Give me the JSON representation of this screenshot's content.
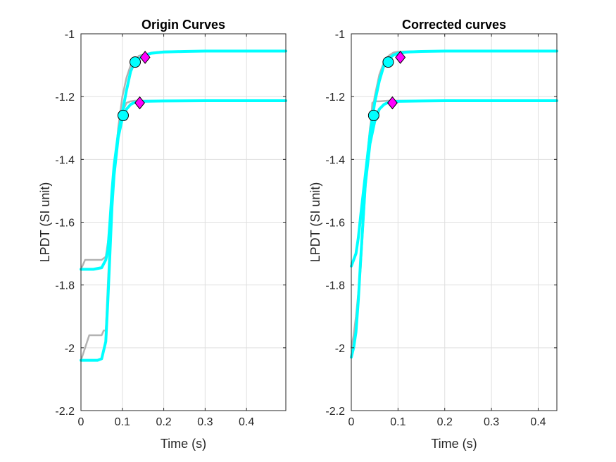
{
  "figure": {
    "background": "#ffffff"
  },
  "chart_data": [
    {
      "type": "line",
      "title": "Origin Curves",
      "xlabel": "Time (s)",
      "ylabel": "LPDT (SI unit)",
      "xlim": [
        0,
        0.495
      ],
      "ylim": [
        -2.2,
        -1.0
      ],
      "xticks": [
        0,
        0.1,
        0.2,
        0.3,
        0.4
      ],
      "xtick_labels": [
        "0",
        "0.1",
        "0.2",
        "0.3",
        "0.4"
      ],
      "yticks": [
        -2.2,
        -2.0,
        -1.8,
        -1.6,
        -1.4,
        -1.2,
        -1.0
      ],
      "ytick_labels": [
        "-2.2",
        "-2",
        "-1.8",
        "-1.6",
        "-1.4",
        "-1.2",
        "-1"
      ],
      "grid": true,
      "series": [
        {
          "role": "raw",
          "color": "#b3b3b3",
          "x": [
            0,
            0.01,
            0.03,
            0.05,
            0.06,
            0.07,
            0.08,
            0.09,
            0.1,
            0.11,
            0.12,
            0.14,
            0.17,
            0.2,
            0.3,
            0.495
          ],
          "y": [
            -1.75,
            -1.72,
            -1.72,
            -1.72,
            -1.71,
            -1.62,
            -1.45,
            -1.3,
            -1.2,
            -1.14,
            -1.1,
            -1.07,
            -1.06,
            -1.056,
            -1.055,
            -1.055
          ]
        },
        {
          "role": "raw",
          "color": "#b3b3b3",
          "x": [
            0,
            0.02,
            0.03,
            0.05,
            0.055,
            0.06,
            0.07,
            0.08,
            0.09,
            0.1,
            0.11,
            0.12,
            0.13,
            0.15,
            0.2,
            0.3,
            0.495
          ],
          "y": [
            -2.04,
            -1.96,
            -1.96,
            -1.96,
            -1.945,
            -1.945,
            -1.65,
            -1.45,
            -1.33,
            -1.25,
            -1.22,
            -1.215,
            -1.213,
            -1.213,
            -1.213,
            -1.213,
            -1.213
          ]
        },
        {
          "role": "fit",
          "color": "#00ffff",
          "x": [
            0,
            0.03,
            0.05,
            0.06,
            0.065,
            0.07,
            0.075,
            0.08,
            0.09,
            0.1,
            0.11,
            0.12,
            0.13,
            0.15,
            0.17,
            0.2,
            0.25,
            0.3,
            0.4,
            0.495
          ],
          "y": [
            -1.75,
            -1.75,
            -1.745,
            -1.72,
            -1.69,
            -1.6,
            -1.5,
            -1.42,
            -1.32,
            -1.25,
            -1.18,
            -1.12,
            -1.09,
            -1.07,
            -1.062,
            -1.058,
            -1.056,
            -1.055,
            -1.055,
            -1.055
          ]
        },
        {
          "role": "fit",
          "color": "#00ffff",
          "x": [
            0,
            0.04,
            0.05,
            0.06,
            0.065,
            0.07,
            0.075,
            0.08,
            0.09,
            0.1,
            0.11,
            0.12,
            0.13,
            0.15,
            0.2,
            0.3,
            0.4,
            0.495
          ],
          "y": [
            -2.04,
            -2.04,
            -2.035,
            -1.98,
            -1.85,
            -1.7,
            -1.55,
            -1.45,
            -1.33,
            -1.27,
            -1.24,
            -1.225,
            -1.218,
            -1.215,
            -1.214,
            -1.213,
            -1.213,
            -1.213
          ]
        }
      ],
      "markers": [
        {
          "shape": "circle",
          "fill": "#00ffff",
          "x": 0.131,
          "y": -1.09
        },
        {
          "shape": "circle",
          "fill": "#00ffff",
          "x": 0.102,
          "y": -1.26
        },
        {
          "shape": "diamond",
          "fill": "#ff00ff",
          "x": 0.155,
          "y": -1.075
        },
        {
          "shape": "diamond",
          "fill": "#ff00ff",
          "x": 0.142,
          "y": -1.22
        }
      ]
    },
    {
      "type": "line",
      "title": "Corrected curves",
      "xlabel": "Time (s)",
      "ylabel": "LPDT (SI unit)",
      "xlim": [
        0,
        0.44
      ],
      "ylim": [
        -2.2,
        -1.0
      ],
      "xticks": [
        0,
        0.1,
        0.2,
        0.3,
        0.4
      ],
      "xtick_labels": [
        "0",
        "0.1",
        "0.2",
        "0.3",
        "0.4"
      ],
      "yticks": [
        -2.2,
        -2.0,
        -1.8,
        -1.6,
        -1.4,
        -1.2,
        -1.0
      ],
      "ytick_labels": [
        "-2.2",
        "-2",
        "-1.8",
        "-1.6",
        "-1.4",
        "-1.2",
        "-1"
      ],
      "grid": true,
      "series": [
        {
          "role": "raw",
          "color": "#b3b3b3",
          "x": [
            0,
            0.005,
            0.01,
            0.02,
            0.03,
            0.04,
            0.05,
            0.06,
            0.07,
            0.08,
            0.09,
            0.1,
            0.12,
            0.15,
            0.2,
            0.44
          ],
          "y": [
            -1.73,
            -1.72,
            -1.7,
            -1.6,
            -1.45,
            -1.3,
            -1.2,
            -1.13,
            -1.09,
            -1.07,
            -1.06,
            -1.057,
            -1.056,
            -1.055,
            -1.055,
            -1.055
          ]
        },
        {
          "role": "raw",
          "color": "#b3b3b3",
          "x": [
            0,
            0.005,
            0.01,
            0.02,
            0.03,
            0.04,
            0.045,
            0.05,
            0.06,
            0.07,
            0.08,
            0.1,
            0.15,
            0.2,
            0.44
          ],
          "y": [
            -2.0,
            -1.96,
            -1.9,
            -1.75,
            -1.5,
            -1.33,
            -1.22,
            -1.215,
            -1.215,
            -1.214,
            -1.213,
            -1.213,
            -1.213,
            -1.213,
            -1.213
          ]
        },
        {
          "role": "fit",
          "color": "#00ffff",
          "x": [
            0,
            0.005,
            0.01,
            0.015,
            0.02,
            0.03,
            0.04,
            0.05,
            0.06,
            0.07,
            0.08,
            0.09,
            0.1,
            0.12,
            0.15,
            0.2,
            0.3,
            0.44
          ],
          "y": [
            -1.74,
            -1.72,
            -1.7,
            -1.65,
            -1.58,
            -1.45,
            -1.32,
            -1.22,
            -1.15,
            -1.1,
            -1.08,
            -1.068,
            -1.062,
            -1.058,
            -1.056,
            -1.055,
            -1.055,
            -1.055
          ]
        },
        {
          "role": "fit",
          "color": "#00ffff",
          "x": [
            0,
            0.005,
            0.01,
            0.015,
            0.02,
            0.025,
            0.03,
            0.04,
            0.05,
            0.06,
            0.07,
            0.08,
            0.1,
            0.15,
            0.2,
            0.3,
            0.44
          ],
          "y": [
            -2.03,
            -2.0,
            -1.95,
            -1.85,
            -1.72,
            -1.6,
            -1.48,
            -1.35,
            -1.28,
            -1.24,
            -1.225,
            -1.218,
            -1.215,
            -1.214,
            -1.213,
            -1.213,
            -1.213
          ]
        }
      ],
      "markers": [
        {
          "shape": "circle",
          "fill": "#00ffff",
          "x": 0.079,
          "y": -1.09
        },
        {
          "shape": "circle",
          "fill": "#00ffff",
          "x": 0.048,
          "y": -1.26
        },
        {
          "shape": "diamond",
          "fill": "#ff00ff",
          "x": 0.105,
          "y": -1.075
        },
        {
          "shape": "diamond",
          "fill": "#ff00ff",
          "x": 0.088,
          "y": -1.22
        }
      ]
    }
  ]
}
